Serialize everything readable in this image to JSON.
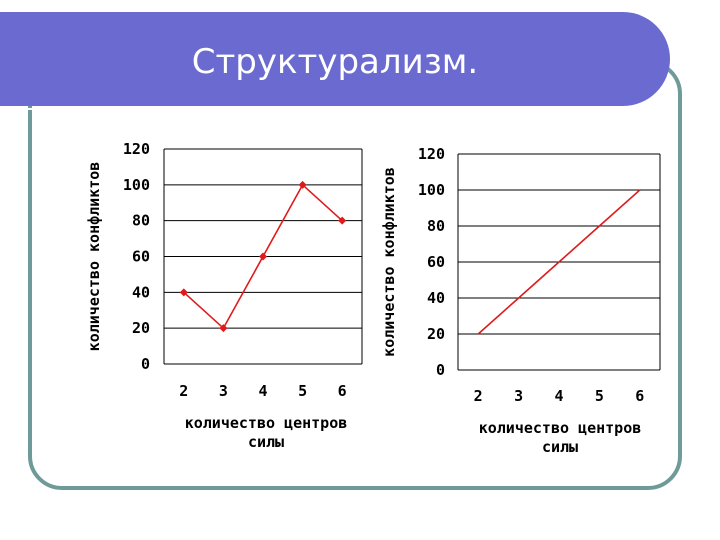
{
  "slide": {
    "title": "Структурализм.",
    "colors": {
      "banner": "#6a6ad0",
      "frame": "#6f9a9a",
      "series": "#e01a1a"
    }
  },
  "chart_data": [
    {
      "type": "line",
      "x": [
        2,
        3,
        4,
        5,
        6
      ],
      "series": [
        {
          "values": [
            40,
            20,
            60,
            100,
            80
          ],
          "marker": "diamond"
        }
      ],
      "xlabel": [
        "количество центров",
        "силы"
      ],
      "ylabel": "количество конфликтов",
      "ylim": [
        0,
        120
      ],
      "yticks": [
        0,
        20,
        40,
        60,
        80,
        100,
        120
      ],
      "xticks": [
        "2",
        "3",
        "4",
        "5",
        "6"
      ],
      "grid": "horizontal",
      "legend": "none"
    },
    {
      "type": "line",
      "x": [
        2,
        3,
        4,
        5,
        6
      ],
      "series": [
        {
          "values": [
            20,
            40,
            60,
            80,
            100
          ],
          "marker": "none"
        }
      ],
      "xlabel": [
        "количество центров",
        "силы"
      ],
      "ylabel": "количество конфликтов",
      "ylim": [
        0,
        120
      ],
      "yticks": [
        0,
        20,
        40,
        60,
        80,
        100,
        120
      ],
      "xticks": [
        "2",
        "3",
        "4",
        "5",
        "6"
      ],
      "grid": "horizontal",
      "legend": "none"
    }
  ]
}
